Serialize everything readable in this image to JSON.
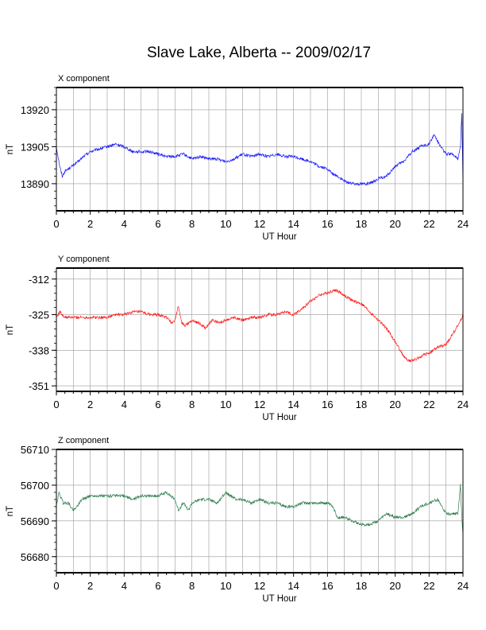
{
  "title": "Slave Lake, Alberta -- 2009/02/17",
  "colors": {
    "x": "#1a1aff",
    "y": "#ff1a1a",
    "z": "#2e7d4f",
    "grid": "#9a9a9a",
    "frame": "#000000"
  },
  "chart_data": [
    {
      "type": "line",
      "panel_title": "X component",
      "xlabel": "UT Hour",
      "ylabel": "nT",
      "xlim": [
        0,
        24
      ],
      "ylim": [
        13879,
        13929
      ],
      "xticks": [
        0,
        2,
        4,
        6,
        8,
        10,
        12,
        14,
        16,
        18,
        20,
        22,
        24
      ],
      "xtick_labels": [
        "0",
        "2",
        "4",
        "6",
        "8",
        "10",
        "12",
        "14",
        "16",
        "18",
        "20",
        "22",
        "24"
      ],
      "yticks": [
        13890,
        13905,
        13920
      ],
      "ytick_labels": [
        "13890",
        "13905",
        "13920"
      ],
      "grid": true,
      "color_key": "x",
      "series": [
        {
          "x": [
            0,
            0.1,
            0.2,
            0.35,
            0.5,
            0.7,
            0.9,
            1.1,
            1.3,
            1.6,
            2.0,
            2.5,
            3.0,
            3.5,
            4.0,
            4.5,
            5.0,
            5.5,
            6.0,
            6.5,
            7.0,
            7.5,
            8.0,
            8.5,
            9.0,
            9.5,
            10.0,
            10.5,
            11.0,
            11.5,
            12.0,
            12.5,
            13.0,
            13.5,
            14.0,
            14.5,
            15.0,
            15.5,
            16.0,
            16.3,
            16.6,
            17.0,
            17.5,
            18.0,
            18.5,
            19.0,
            19.5,
            20.0,
            20.5,
            21.0,
            21.5,
            22.0,
            22.3,
            22.6,
            23.0,
            23.4,
            23.7,
            23.85,
            23.93,
            24.0
          ],
          "y": [
            13905,
            13901,
            13897,
            13893,
            13895,
            13896,
            13897,
            13898,
            13899,
            13901,
            13903,
            13904,
            13905,
            13906,
            13905,
            13903,
            13903,
            13903,
            13902,
            13901,
            13901,
            13902,
            13900,
            13901,
            13900,
            13900,
            13899,
            13900,
            13902,
            13901,
            13902,
            13901,
            13902,
            13901,
            13901,
            13900,
            13899,
            13897,
            13896,
            13894,
            13893,
            13891,
            13890,
            13890,
            13890,
            13892,
            13893,
            13897,
            13899,
            13903,
            13905,
            13906,
            13910,
            13906,
            13902,
            13902,
            13900,
            13905,
            13919,
            13889
          ]
        }
      ]
    },
    {
      "type": "line",
      "panel_title": "Y component",
      "xlabel": "UT Hour",
      "ylabel": "nT",
      "xlim": [
        0,
        24
      ],
      "ylim": [
        -353,
        -308
      ],
      "xticks": [
        0,
        2,
        4,
        6,
        8,
        10,
        12,
        14,
        16,
        18,
        20,
        22,
        24
      ],
      "xtick_labels": [
        "0",
        "2",
        "4",
        "6",
        "8",
        "10",
        "12",
        "14",
        "16",
        "18",
        "20",
        "22",
        "24"
      ],
      "yticks": [
        -312,
        -325,
        -338,
        -351
      ],
      "ytick_labels": [
        "-312",
        "-325",
        "-338",
        "-351"
      ],
      "grid": true,
      "color_key": "y",
      "series": [
        {
          "x": [
            0,
            0.2,
            0.5,
            1.0,
            1.5,
            2.0,
            2.5,
            3.0,
            3.5,
            4.0,
            4.5,
            5.0,
            5.5,
            6.0,
            6.5,
            6.8,
            7.0,
            7.2,
            7.4,
            7.6,
            8.0,
            8.4,
            8.8,
            9.2,
            9.6,
            10.0,
            10.5,
            11.0,
            11.5,
            12.0,
            12.5,
            13.0,
            13.5,
            14.0,
            14.5,
            15.0,
            15.5,
            16.0,
            16.5,
            17.0,
            17.5,
            18.0,
            18.5,
            19.0,
            19.5,
            20.0,
            20.3,
            20.6,
            20.9,
            21.3,
            21.6,
            22.0,
            22.5,
            23.0,
            23.3,
            23.6,
            23.8,
            24.0
          ],
          "y": [
            -326,
            -324,
            -326,
            -326,
            -326,
            -326,
            -326,
            -326,
            -325,
            -325,
            -324,
            -324,
            -325,
            -325,
            -326,
            -328,
            -327,
            -322,
            -328,
            -329,
            -327,
            -328,
            -330,
            -327,
            -328,
            -327,
            -326,
            -327,
            -326,
            -326,
            -325,
            -325,
            -324,
            -325,
            -323,
            -320,
            -318,
            -317,
            -316,
            -318,
            -320,
            -321,
            -324,
            -327,
            -330,
            -335,
            -338,
            -341,
            -342,
            -341,
            -340,
            -339,
            -337,
            -336,
            -333,
            -330,
            -328,
            -325
          ]
        }
      ]
    },
    {
      "type": "line",
      "panel_title": "Z component",
      "xlabel": "UT Hour",
      "ylabel": "nT",
      "xlim": [
        0,
        24
      ],
      "ylim": [
        56675.5,
        56710
      ],
      "xticks": [
        0,
        2,
        4,
        6,
        8,
        10,
        12,
        14,
        16,
        18,
        20,
        22,
        24
      ],
      "xtick_labels": [
        "0",
        "2",
        "4",
        "6",
        "8",
        "10",
        "12",
        "14",
        "16",
        "18",
        "20",
        "22",
        "24"
      ],
      "yticks": [
        56680,
        56690,
        56700,
        56710
      ],
      "ytick_labels": [
        "56680",
        "56690",
        "56700",
        "56710"
      ],
      "grid": true,
      "color_key": "z",
      "series": [
        {
          "x": [
            0,
            0.15,
            0.4,
            0.7,
            1.0,
            1.2,
            1.5,
            2.0,
            2.5,
            3.0,
            3.5,
            4.0,
            4.5,
            5.0,
            5.5,
            6.0,
            6.5,
            7.0,
            7.2,
            7.5,
            7.8,
            8.0,
            8.5,
            9.0,
            9.5,
            10.0,
            10.3,
            10.6,
            11.0,
            11.5,
            12.0,
            12.5,
            13.0,
            13.5,
            14.0,
            14.5,
            15.0,
            15.5,
            16.0,
            16.3,
            16.6,
            17.0,
            17.5,
            18.0,
            18.5,
            19.0,
            19.5,
            20.0,
            20.5,
            21.0,
            21.5,
            22.0,
            22.5,
            23.0,
            23.4,
            23.7,
            23.85,
            23.93,
            24.0
          ],
          "y": [
            56694,
            56698,
            56695,
            56695,
            56693,
            56694,
            56696,
            56697,
            56697,
            56697,
            56697,
            56697,
            56696,
            56697,
            56697,
            56697,
            56698,
            56696,
            56693,
            56695,
            56693,
            56695,
            56696,
            56696,
            56695,
            56698,
            56697,
            56696,
            56696,
            56695,
            56696,
            56695,
            56695,
            56694,
            56694,
            56695,
            56695,
            56695,
            56695,
            56694,
            56691,
            56691,
            56690,
            56689,
            56689,
            56690,
            56692,
            56691,
            56691,
            56692,
            56694,
            56695,
            56696,
            56692,
            56692,
            56692,
            56700,
            56691,
            56686
          ]
        }
      ]
    }
  ]
}
